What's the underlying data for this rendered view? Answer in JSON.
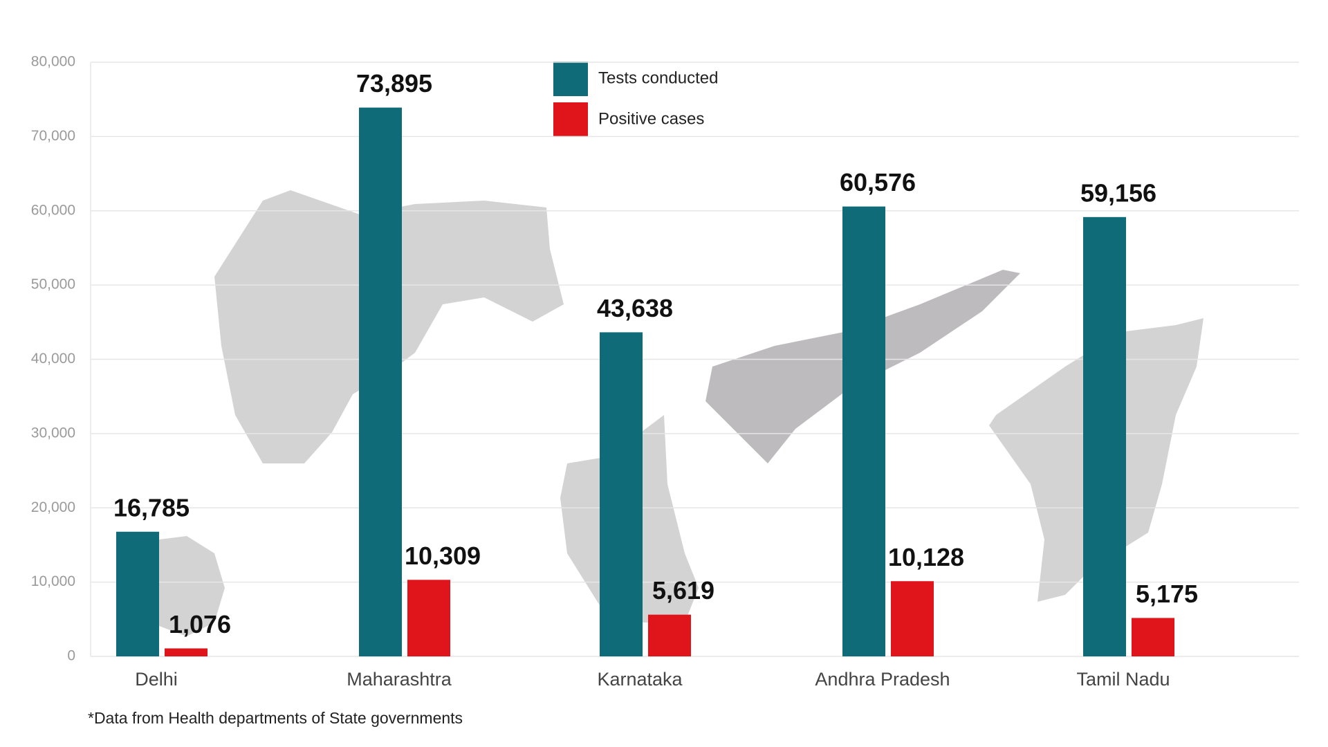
{
  "chart_data": {
    "type": "bar",
    "categories": [
      "Delhi",
      "Maharashtra",
      "Karnataka",
      "Andhra Pradesh",
      "Tamil Nadu"
    ],
    "series": [
      {
        "name": "Tests conducted",
        "color": "#0e6b77",
        "values": [
          16785,
          73895,
          43638,
          60576,
          59156
        ],
        "value_labels": [
          "16,785",
          "73,895",
          "43,638",
          "60,576",
          "59,156"
        ]
      },
      {
        "name": "Positive cases",
        "color": "#e0141b",
        "values": [
          1076,
          10309,
          5619,
          10128,
          5175
        ],
        "value_labels": [
          "1,076",
          "10,309",
          "5,619",
          "10,128",
          "5,175"
        ]
      }
    ],
    "ylim": [
      0,
      80000
    ],
    "yticks": [
      0,
      {
        "value": 10000,
        "label": "10,000"
      },
      {
        "value": 20000,
        "label": "20,000"
      },
      {
        "value": 30000,
        "label": "30,000"
      },
      {
        "value": 40000,
        "label": "40,000"
      },
      {
        "value": 50000,
        "label": "50,000"
      },
      {
        "value": 60000,
        "label": "60,000"
      },
      {
        "value": 70000,
        "label": "70,000"
      },
      {
        "value": 80000,
        "label": "80,000"
      }
    ],
    "grid": true,
    "footnote": "*Data from Health departments of State governments"
  }
}
